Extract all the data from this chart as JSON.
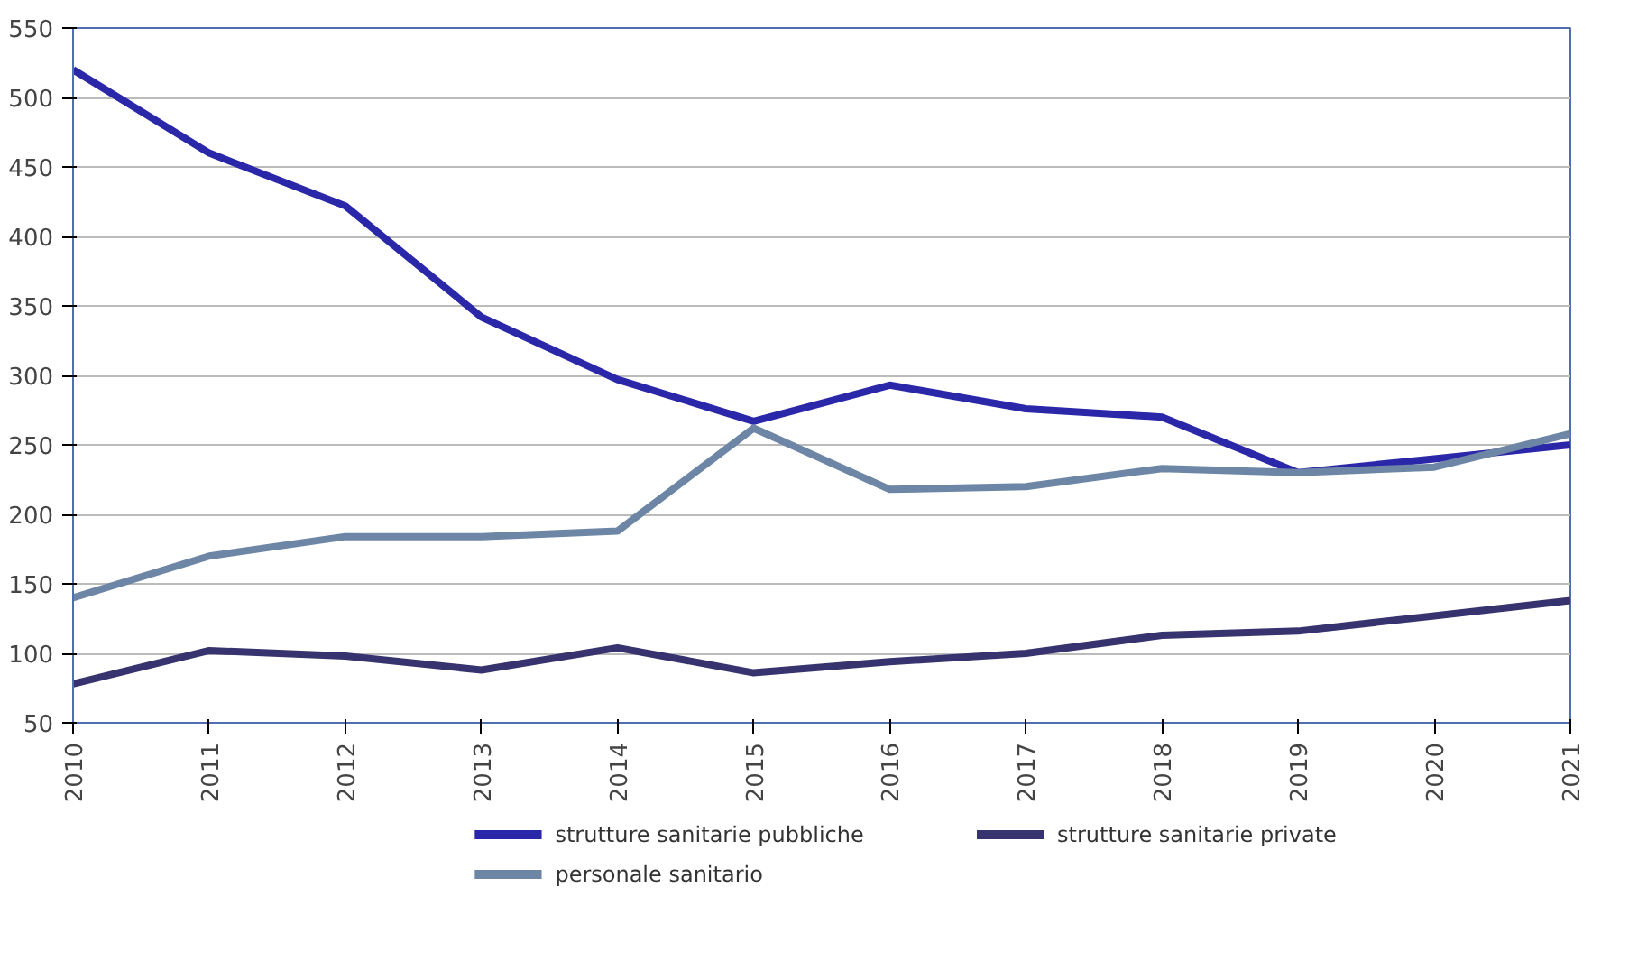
{
  "chart_data": {
    "type": "line",
    "categories": [
      "2010",
      "2011",
      "2012",
      "2013",
      "2014",
      "2015",
      "2016",
      "2017",
      "2018",
      "2019",
      "2020",
      "2021"
    ],
    "series": [
      {
        "name": "strutture sanitarie pubbliche",
        "color": "#2a28a8",
        "values": [
          520,
          460,
          422,
          342,
          297,
          267,
          293,
          276,
          270,
          230,
          240,
          250
        ]
      },
      {
        "name": "strutture sanitarie private",
        "color": "#37336e",
        "values": [
          78,
          102,
          98,
          88,
          104,
          86,
          94,
          100,
          113,
          116,
          127,
          138
        ]
      },
      {
        "name": "personale sanitario",
        "color": "#6d86a6",
        "values": [
          140,
          170,
          184,
          184,
          188,
          262,
          218,
          220,
          233,
          230,
          234,
          258
        ]
      }
    ],
    "ylim": [
      50,
      550
    ],
    "yticks": [
      50,
      100,
      150,
      200,
      250,
      300,
      350,
      400,
      450,
      500,
      550
    ],
    "grid": "y",
    "legend": "bottom",
    "marker": "none",
    "line_style": "solid"
  }
}
